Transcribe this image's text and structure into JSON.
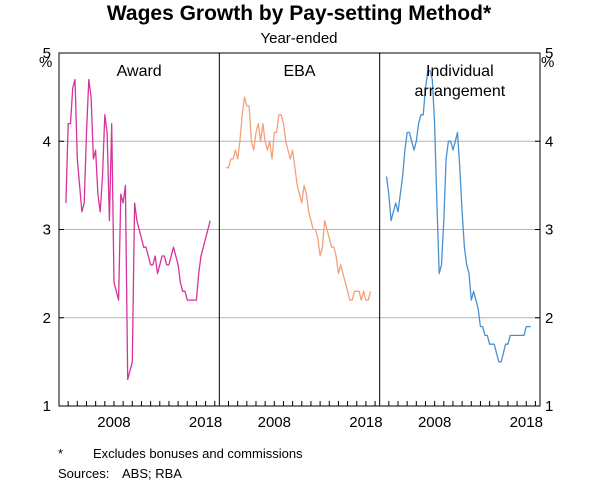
{
  "title": "Wages Growth by Pay-setting Method*",
  "subtitle": "Year-ended",
  "footnotes": {
    "asterisk_mark": "*",
    "asterisk_text": "Excludes bonuses and commissions",
    "sources_label": "Sources:",
    "sources_text": "ABS; RBA"
  },
  "chart_data": {
    "type": "line",
    "unit_left": "%",
    "unit_right": "%",
    "ylim": [
      1,
      5
    ],
    "y_ticks": [
      "1",
      "2",
      "3",
      "4",
      "5"
    ],
    "x_range": [
      2002,
      2019.5
    ],
    "x_ticks": [
      {
        "value": 2008,
        "label": "2008"
      },
      {
        "value": 2018,
        "label": "2018"
      }
    ],
    "grid": true,
    "panels": [
      {
        "name": "Award",
        "title_lines": [
          "Award"
        ],
        "color": "#d6339b",
        "x": [
          2002.75,
          2003.0,
          2003.25,
          2003.5,
          2003.75,
          2004.0,
          2004.25,
          2004.5,
          2004.75,
          2005.0,
          2005.25,
          2005.5,
          2005.75,
          2006.0,
          2006.25,
          2006.5,
          2006.75,
          2007.0,
          2007.25,
          2007.5,
          2007.75,
          2008.0,
          2008.25,
          2008.5,
          2008.75,
          2009.0,
          2009.25,
          2009.5,
          2009.75,
          2010.0,
          2010.25,
          2010.5,
          2010.75,
          2011.0,
          2011.25,
          2011.5,
          2011.75,
          2012.0,
          2012.25,
          2012.5,
          2012.75,
          2013.0,
          2013.25,
          2013.5,
          2013.75,
          2014.0,
          2014.25,
          2014.5,
          2014.75,
          2015.0,
          2015.25,
          2015.5,
          2015.75,
          2016.0,
          2016.25,
          2016.5,
          2016.75,
          2017.0,
          2017.25,
          2017.5,
          2017.75,
          2018.0,
          2018.25,
          2018.5
        ],
        "values": [
          3.3,
          4.2,
          4.2,
          4.6,
          4.7,
          3.8,
          3.5,
          3.2,
          3.3,
          4.1,
          4.7,
          4.5,
          3.8,
          3.9,
          3.4,
          3.2,
          3.6,
          4.3,
          4.1,
          3.1,
          4.2,
          2.4,
          2.3,
          2.2,
          3.4,
          3.3,
          3.5,
          1.3,
          1.4,
          1.5,
          3.3,
          3.1,
          3.0,
          2.9,
          2.8,
          2.8,
          2.7,
          2.6,
          2.6,
          2.7,
          2.5,
          2.6,
          2.7,
          2.7,
          2.6,
          2.6,
          2.7,
          2.8,
          2.7,
          2.6,
          2.4,
          2.3,
          2.3,
          2.2,
          2.2,
          2.2,
          2.2,
          2.2,
          2.5,
          2.7,
          2.8,
          2.9,
          3.0,
          3.1
        ]
      },
      {
        "name": "EBA",
        "title_lines": [
          "EBA"
        ],
        "color": "#f4a17a",
        "x": [
          2002.75,
          2003.0,
          2003.25,
          2003.5,
          2003.75,
          2004.0,
          2004.25,
          2004.5,
          2004.75,
          2005.0,
          2005.25,
          2005.5,
          2005.75,
          2006.0,
          2006.25,
          2006.5,
          2006.75,
          2007.0,
          2007.25,
          2007.5,
          2007.75,
          2008.0,
          2008.25,
          2008.5,
          2008.75,
          2009.0,
          2009.25,
          2009.5,
          2009.75,
          2010.0,
          2010.25,
          2010.5,
          2010.75,
          2011.0,
          2011.25,
          2011.5,
          2011.75,
          2012.0,
          2012.25,
          2012.5,
          2012.75,
          2013.0,
          2013.25,
          2013.5,
          2013.75,
          2014.0,
          2014.25,
          2014.5,
          2014.75,
          2015.0,
          2015.25,
          2015.5,
          2015.75,
          2016.0,
          2016.25,
          2016.5,
          2016.75,
          2017.0,
          2017.25,
          2017.5,
          2017.75,
          2018.0,
          2018.25,
          2018.5
        ],
        "values": [
          3.7,
          3.7,
          3.8,
          3.8,
          3.9,
          3.8,
          4.0,
          4.3,
          4.5,
          4.4,
          4.4,
          4.0,
          3.9,
          4.1,
          4.2,
          4.0,
          4.2,
          4.0,
          3.9,
          4.0,
          3.8,
          4.1,
          4.1,
          4.3,
          4.3,
          4.2,
          4.0,
          3.9,
          3.8,
          3.9,
          3.7,
          3.5,
          3.4,
          3.3,
          3.5,
          3.4,
          3.2,
          3.1,
          3.0,
          3.0,
          2.9,
          2.7,
          2.8,
          3.1,
          3.0,
          2.9,
          2.8,
          2.8,
          2.7,
          2.5,
          2.6,
          2.5,
          2.4,
          2.3,
          2.2,
          2.2,
          2.3,
          2.3,
          2.3,
          2.2,
          2.3,
          2.2,
          2.2,
          2.3
        ]
      },
      {
        "name": "Individual arrangement",
        "title_lines": [
          "Individual",
          "arrangement"
        ],
        "color": "#4a90d0",
        "x": [
          2002.75,
          2003.0,
          2003.25,
          2003.5,
          2003.75,
          2004.0,
          2004.25,
          2004.5,
          2004.75,
          2005.0,
          2005.25,
          2005.5,
          2005.75,
          2006.0,
          2006.25,
          2006.5,
          2006.75,
          2007.0,
          2007.25,
          2007.5,
          2007.75,
          2008.0,
          2008.25,
          2008.5,
          2008.75,
          2009.0,
          2009.25,
          2009.5,
          2009.75,
          2010.0,
          2010.25,
          2010.5,
          2010.75,
          2011.0,
          2011.25,
          2011.5,
          2011.75,
          2012.0,
          2012.25,
          2012.5,
          2012.75,
          2013.0,
          2013.25,
          2013.5,
          2013.75,
          2014.0,
          2014.25,
          2014.5,
          2014.75,
          2015.0,
          2015.25,
          2015.5,
          2015.75,
          2016.0,
          2016.25,
          2016.5,
          2016.75,
          2017.0,
          2017.25,
          2017.5,
          2017.75,
          2018.0,
          2018.25,
          2018.5
        ],
        "values": [
          3.6,
          3.4,
          3.1,
          3.2,
          3.3,
          3.2,
          3.4,
          3.6,
          3.9,
          4.1,
          4.1,
          4.0,
          3.9,
          4.0,
          4.2,
          4.3,
          4.3,
          4.6,
          4.8,
          4.8,
          4.7,
          4.2,
          3.3,
          2.5,
          2.6,
          3.1,
          3.8,
          4.0,
          4.0,
          3.9,
          4.0,
          4.1,
          3.7,
          3.2,
          2.8,
          2.6,
          2.5,
          2.2,
          2.3,
          2.2,
          2.1,
          1.9,
          1.9,
          1.8,
          1.8,
          1.7,
          1.7,
          1.7,
          1.6,
          1.5,
          1.5,
          1.6,
          1.7,
          1.7,
          1.8,
          1.8,
          1.8,
          1.8,
          1.8,
          1.8,
          1.8,
          1.9,
          1.9,
          1.9
        ]
      }
    ]
  }
}
